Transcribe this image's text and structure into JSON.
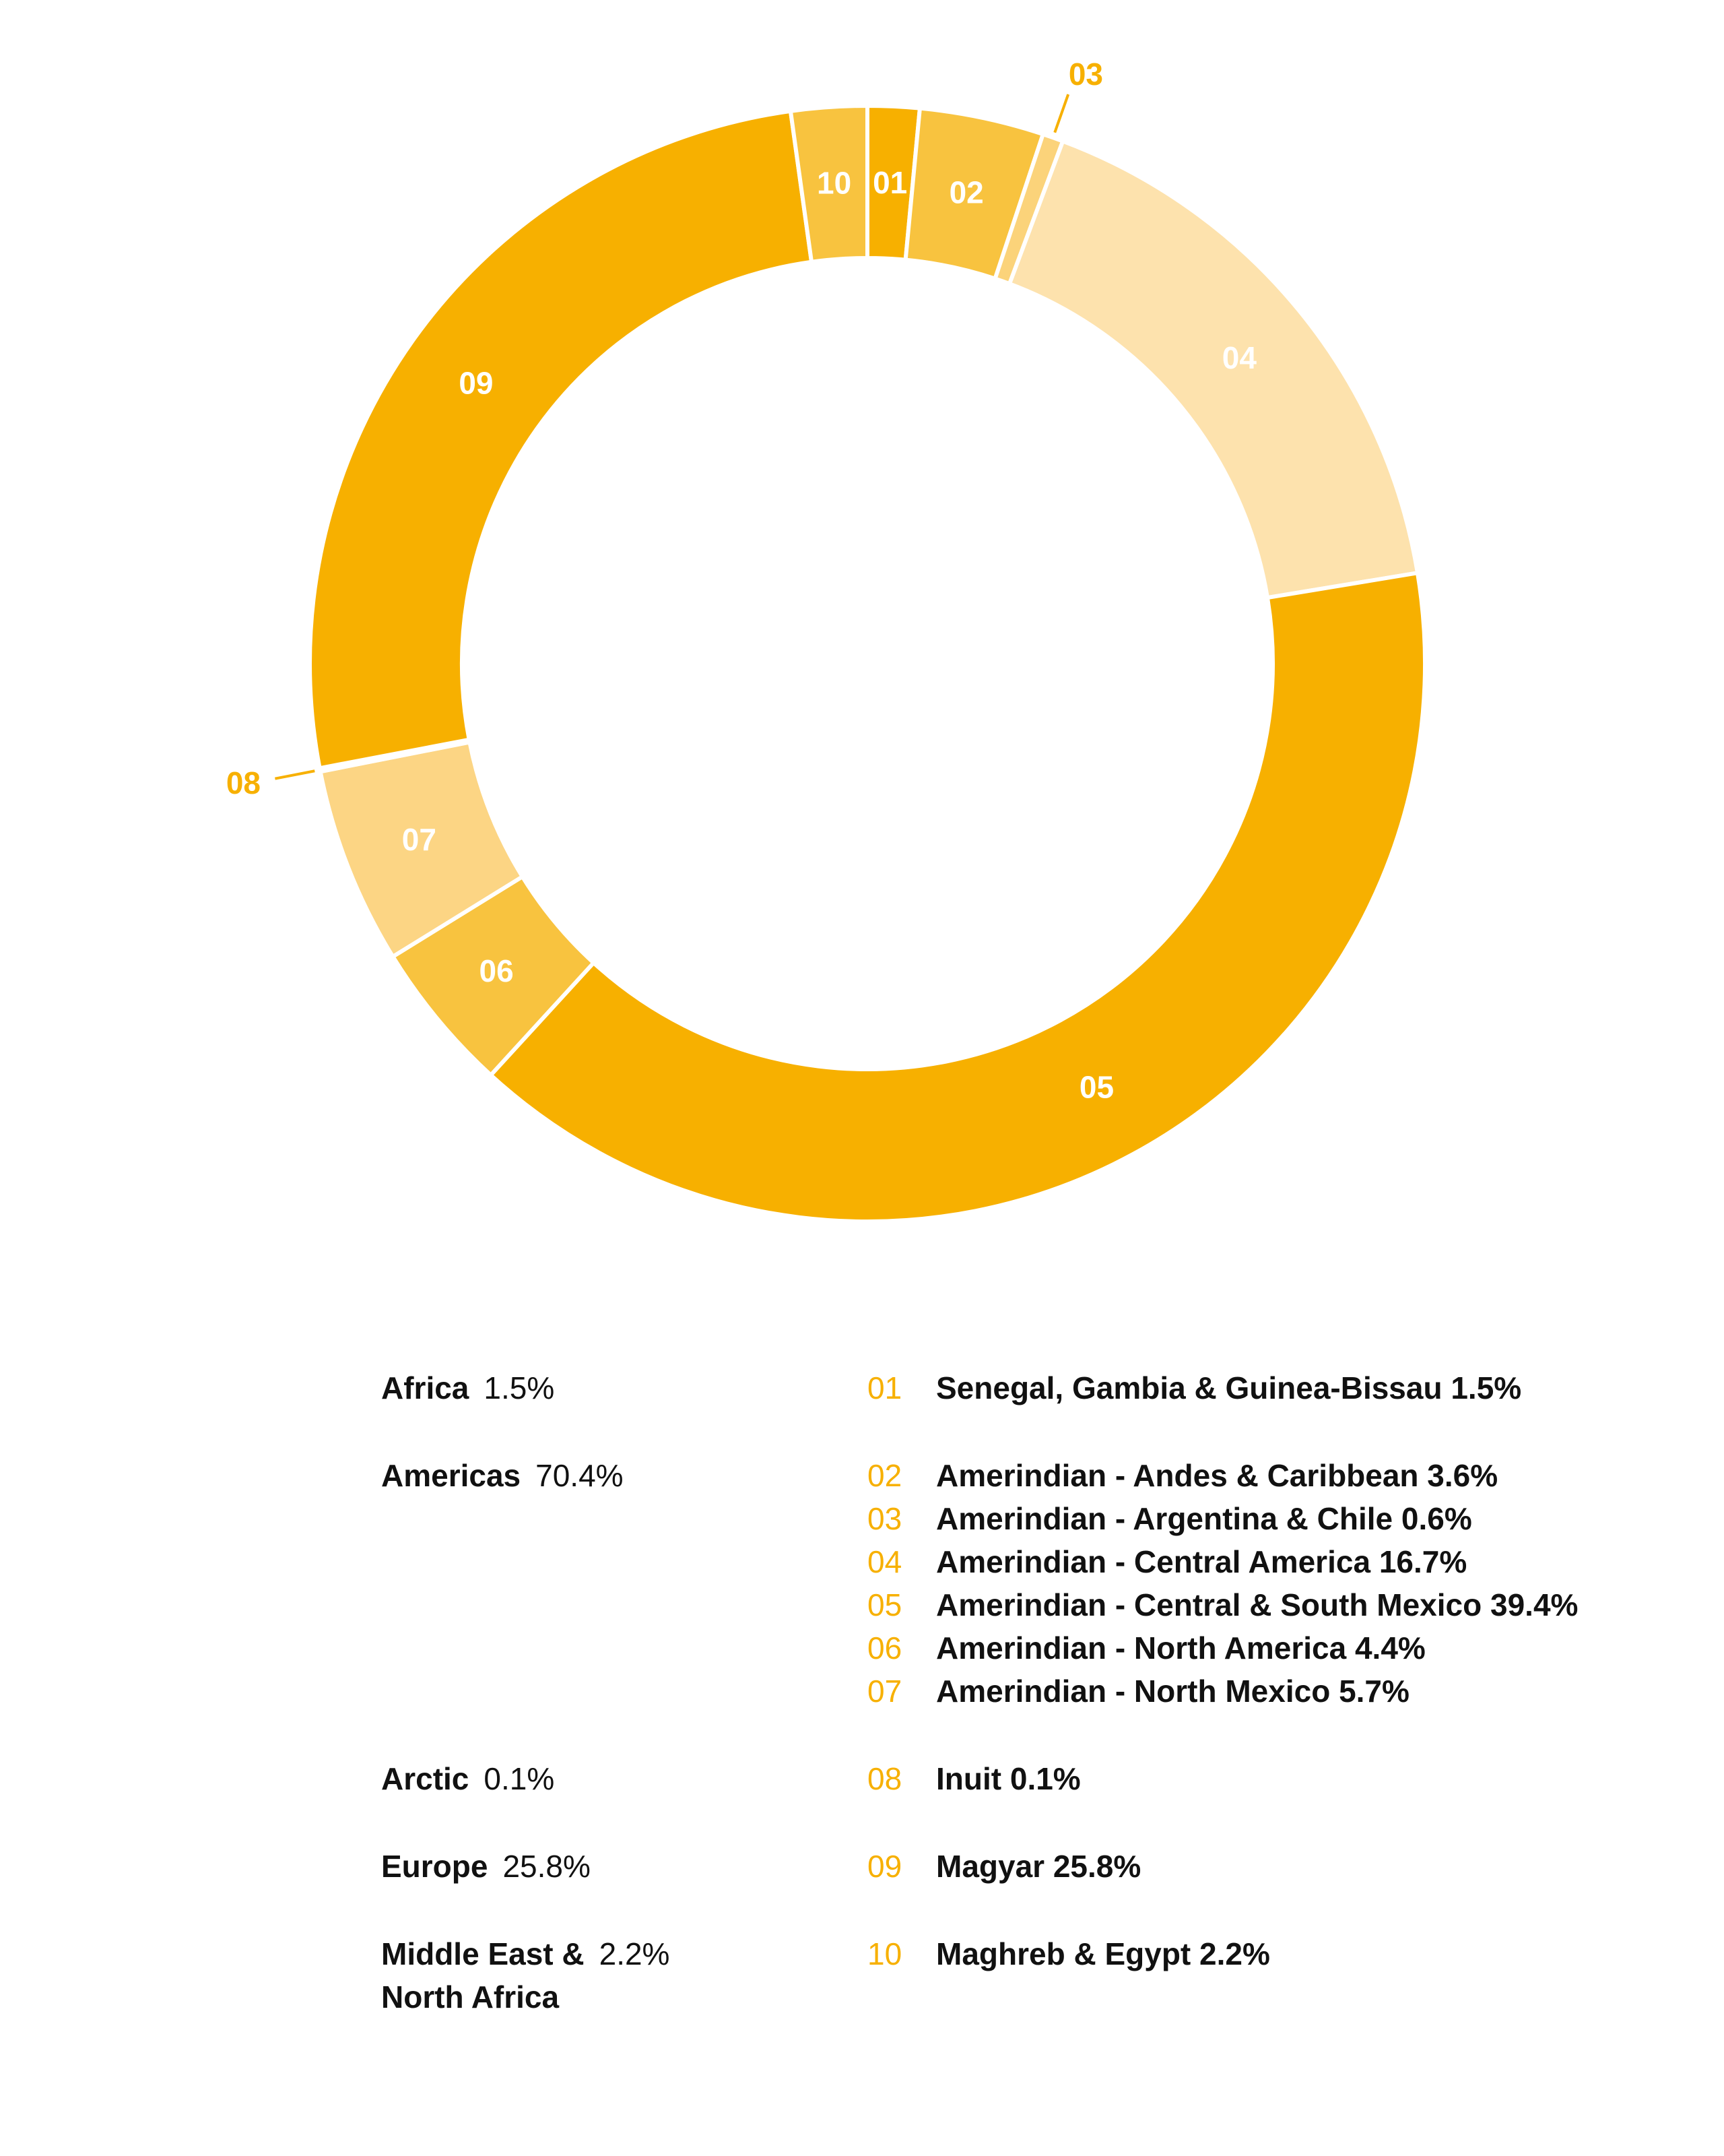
{
  "chart_data": {
    "type": "pie",
    "variant": "donut",
    "start_angle_deg": 0,
    "direction": "clockwise",
    "segments": [
      {
        "id": "01",
        "label": "Senegal, Gambia & Guinea-Bissau",
        "value": 1.5,
        "display": "1.5%",
        "color": "#f7b000"
      },
      {
        "id": "02",
        "label": "Amerindian - Andes & Caribbean",
        "value": 3.6,
        "display": "3.6%",
        "color": "#f8c33f"
      },
      {
        "id": "03",
        "label": "Amerindian - Argentina & Chile",
        "value": 0.6,
        "display": "0.6%",
        "color": "#fbd37a"
      },
      {
        "id": "04",
        "label": "Amerindian - Central America",
        "value": 16.7,
        "display": "16.7%",
        "color": "#fde2ad"
      },
      {
        "id": "05",
        "label": "Amerindian - Central & South Mexico",
        "value": 39.4,
        "display": "39.4%",
        "color": "#f7b000"
      },
      {
        "id": "06",
        "label": "Amerindian - North America",
        "value": 4.4,
        "display": "4.4%",
        "color": "#f8c33f"
      },
      {
        "id": "07",
        "label": "Amerindian - North Mexico",
        "value": 5.7,
        "display": "5.7%",
        "color": "#fcd584"
      },
      {
        "id": "08",
        "label": "Inuit",
        "value": 0.1,
        "display": "0.1%",
        "color": "#fde2ad"
      },
      {
        "id": "09",
        "label": "Magyar",
        "value": 25.8,
        "display": "25.8%",
        "color": "#f7b000"
      },
      {
        "id": "10",
        "label": "Maghreb & Egypt",
        "value": 2.2,
        "display": "2.2%",
        "color": "#f8c33f"
      }
    ],
    "callouts": [
      "03",
      "08"
    ]
  },
  "legend": {
    "groups": [
      {
        "region": "Africa",
        "region_line2": "",
        "pct": "1.5%",
        "items": [
          {
            "num": "01",
            "text": "Senegal, Gambia & Guinea-Bissau 1.5%"
          }
        ]
      },
      {
        "region": "Americas",
        "region_line2": "",
        "pct": "70.4%",
        "items": [
          {
            "num": "02",
            "text": "Amerindian - Andes & Caribbean 3.6%"
          },
          {
            "num": "03",
            "text": "Amerindian - Argentina & Chile 0.6%"
          },
          {
            "num": "04",
            "text": "Amerindian - Central America 16.7%"
          },
          {
            "num": "05",
            "text": "Amerindian - Central & South Mexico 39.4%"
          },
          {
            "num": "06",
            "text": "Amerindian - North America 4.4%"
          },
          {
            "num": "07",
            "text": "Amerindian - North Mexico 5.7%"
          }
        ]
      },
      {
        "region": "Arctic",
        "region_line2": "",
        "pct": "0.1%",
        "items": [
          {
            "num": "08",
            "text": "Inuit 0.1%"
          }
        ]
      },
      {
        "region": "Europe",
        "region_line2": "",
        "pct": "25.8%",
        "items": [
          {
            "num": "09",
            "text": "Magyar 25.8%"
          }
        ]
      },
      {
        "region": "Middle East &",
        "region_line2": "North Africa",
        "pct": "2.2%",
        "items": [
          {
            "num": "10",
            "text": "Maghreb & Egypt 2.2%"
          }
        ]
      }
    ]
  },
  "colors": {
    "accent": "#f7b000",
    "text": "#111111",
    "separator": "#ffffff"
  }
}
